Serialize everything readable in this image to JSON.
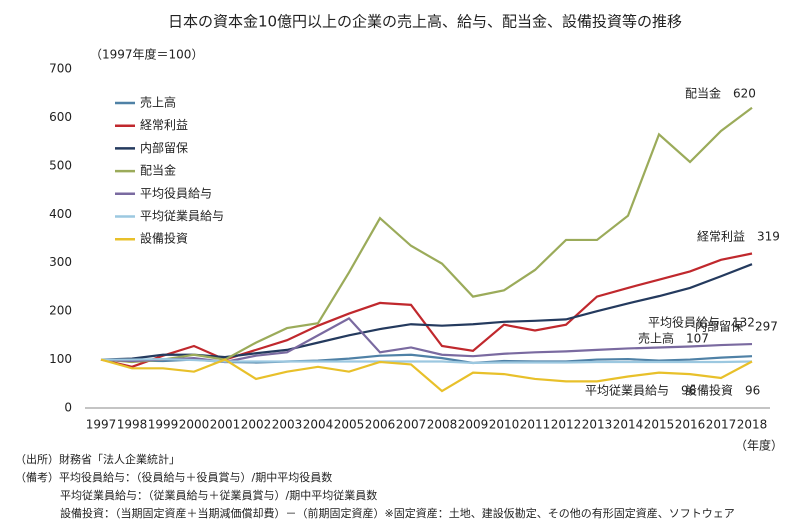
{
  "chart_data": {
    "type": "line",
    "title": "日本の資本金10億円以上の企業の売上高、給与、配当金、設備投資等の推移",
    "subtitle": "（1997年度＝100）",
    "x_label": "（年度）",
    "categories": [
      "1997",
      "1998",
      "1999",
      "2000",
      "2001",
      "2002",
      "2003",
      "2004",
      "2005",
      "2006",
      "2007",
      "2008",
      "2009",
      "2010",
      "2011",
      "2012",
      "2013",
      "2014",
      "2015",
      "2016",
      "2017",
      "2018"
    ],
    "ylim": [
      0,
      700
    ],
    "yticks": [
      0,
      100,
      200,
      300,
      400,
      500,
      600,
      700
    ],
    "legend": "upper left",
    "series": [
      {
        "name": "売上高",
        "color": "#4f81a6",
        "values": [
          100,
          98,
          97,
          100,
          95,
          94,
          96,
          98,
          102,
          108,
          110,
          103,
          93,
          97,
          96,
          96,
          100,
          101,
          98,
          100,
          104,
          107
        ]
      },
      {
        "name": "経常利益",
        "color": "#c0282d",
        "values": [
          100,
          85,
          108,
          128,
          100,
          120,
          140,
          170,
          195,
          217,
          213,
          128,
          118,
          172,
          160,
          172,
          230,
          248,
          265,
          282,
          306,
          319
        ]
      },
      {
        "name": "内部留保",
        "color": "#243a5e",
        "values": [
          100,
          102,
          110,
          110,
          105,
          113,
          120,
          135,
          150,
          163,
          173,
          170,
          173,
          178,
          180,
          183,
          200,
          216,
          231,
          248,
          272,
          297
        ]
      },
      {
        "name": "配当金",
        "color": "#9bab5a",
        "values": [
          100,
          95,
          100,
          110,
          100,
          135,
          165,
          175,
          280,
          392,
          335,
          298,
          230,
          243,
          285,
          347,
          347,
          397,
          565,
          508,
          572,
          620
        ]
      },
      {
        "name": "平均役員給与",
        "color": "#7a6aa0",
        "values": [
          100,
          97,
          100,
          103,
          95,
          108,
          115,
          150,
          185,
          115,
          125,
          110,
          107,
          112,
          115,
          117,
          120,
          123,
          125,
          127,
          130,
          132
        ]
      },
      {
        "name": "平均従業員給与",
        "color": "#9cc8e0",
        "values": [
          100,
          100,
          101,
          99,
          96,
          96,
          96,
          96,
          96,
          96,
          96,
          96,
          93,
          94,
          94,
          94,
          95,
          95,
          95,
          95,
          95,
          96
        ]
      },
      {
        "name": "設備投資",
        "color": "#e8c02a",
        "values": [
          100,
          82,
          82,
          75,
          100,
          60,
          75,
          85,
          75,
          95,
          90,
          35,
          73,
          70,
          60,
          55,
          55,
          65,
          73,
          70,
          62,
          96
        ]
      }
    ],
    "annotations": [
      "配当金　620",
      "経常利益　319",
      "内部留保　297",
      "平均役員給与　132",
      "売上高　107",
      "平均従業員給与　96",
      "設備投資　96"
    ],
    "notes": [
      "（出所）財務省「法人企業統計」",
      "（備考）平均役員給与：（役員給与＋役員賞与）/期中平均役員数",
      "平均従業員給与：（従業員給与＋従業員賞与）/期中平均従業員数",
      "設備投資：（当期固定資産＋当期減価償却費）－（前期固定資産）※固定資産：土地、建設仮勘定、その他の有形固定資産、ソフトウェア"
    ]
  }
}
